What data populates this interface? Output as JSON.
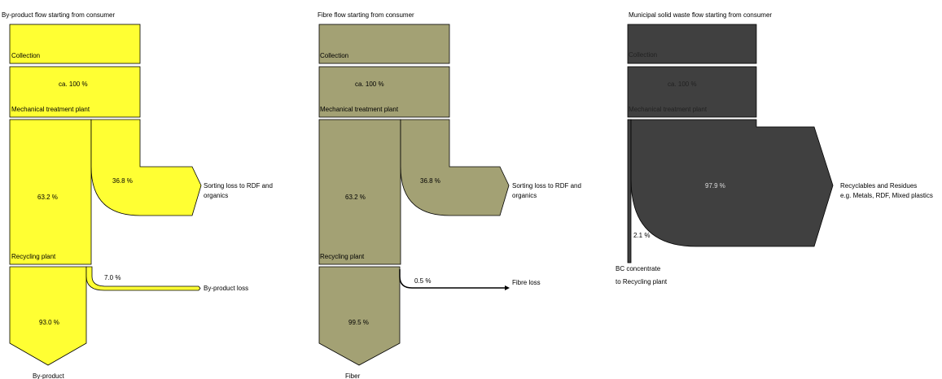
{
  "diagrams": [
    {
      "title": "By-product flow starting from consumer",
      "fill": "#ffff33",
      "collection": "Collection",
      "collection_share": "ca. 100 %",
      "mechanical": "Mechanical treatment plant",
      "main_value": "63.2 %",
      "side_value": "36.8 %",
      "side_label_1": "Sorting loss to RDF and",
      "side_label_2": "organics",
      "recycling": "Recycling plant",
      "loss_value": "7.0 %",
      "loss_label": "By-product loss",
      "final_value": "93.0 %",
      "output": "By-product"
    },
    {
      "title": "Fibre flow starting from consumer",
      "fill": "#a3a174",
      "collection": "Collection",
      "collection_share": "ca. 100 %",
      "mechanical": "Mechanical treatment plant",
      "main_value": "63.2 %",
      "side_value": "36.8 %",
      "side_label_1": "Sorting loss to RDF and",
      "side_label_2": "organics",
      "recycling": "Recycling plant",
      "loss_value": "0.5 %",
      "loss_label": "Fibre loss",
      "final_value": "99.5 %",
      "output": "Fiber"
    },
    {
      "title": "Municipal solid waste flow starting from consumer",
      "fill": "#404040",
      "collection": "Collection",
      "collection_share": "ca. 100 %",
      "mechanical": "Mechanical treatment plant",
      "main_value": "97.9 %",
      "side_label_1": "Recyclables and Residues",
      "side_label_2": "e.g. Metals, RDF, Mixed plastics",
      "minor_value": "2.1 %",
      "output_1": "BC concentrate",
      "output_2": "to Recycling plant"
    }
  ]
}
